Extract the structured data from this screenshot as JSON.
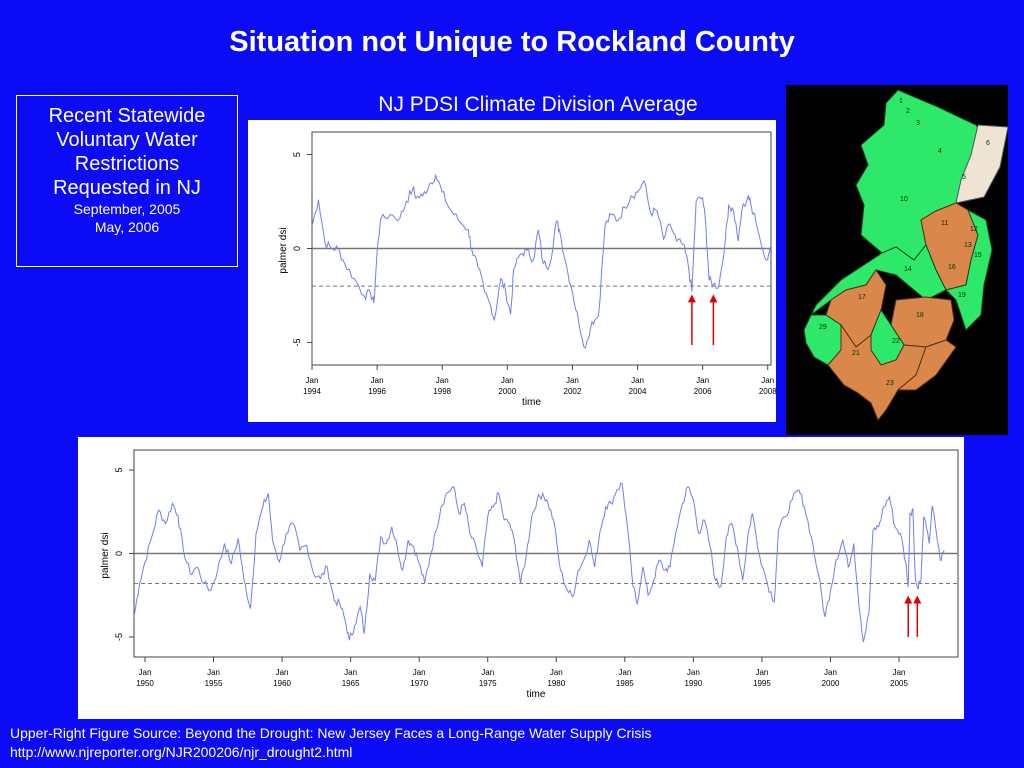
{
  "title": "Situation not Unique to Rockland County",
  "chart_title": "NJ PDSI Climate Division Average",
  "callout": {
    "line1": "Recent Statewide",
    "line2": "Voluntary Water",
    "line3": "Restrictions",
    "line4": "Requested in NJ",
    "date1": "September, 2005",
    "date2": "May, 2006"
  },
  "footer": {
    "line1": "Upper-Right Figure Source: Beyond the Drought: New Jersey Faces a Long-Range Water Supply Crisis",
    "line2": "http://www.njreporter.org/NJR200206/njr_drought2.html"
  },
  "colors": {
    "background": "#0b0bf5",
    "series": "#6f7ff0",
    "arrow": "#e00000",
    "map_green": "#2ee86a",
    "map_orange": "#d9874a",
    "map_beige": "#efe3d6"
  },
  "chart_data": [
    {
      "type": "line",
      "ylabel": "palmer dsi",
      "xlabel": "time",
      "ylim": [
        -6.2,
        6.2
      ],
      "yticks": [
        -5,
        0,
        5
      ],
      "reference_lines": [
        0,
        -2
      ],
      "xlim": [
        1994,
        2008.1
      ],
      "xticks": [
        {
          "x": 1994,
          "label": "Jan\n1994"
        },
        {
          "x": 1996,
          "label": "Jan\n1996"
        },
        {
          "x": 1998,
          "label": "Jan\n1998"
        },
        {
          "x": 2000,
          "label": "Jan\n2000"
        },
        {
          "x": 2002,
          "label": "Jan\n2002"
        },
        {
          "x": 2004,
          "label": "Jan\n2004"
        },
        {
          "x": 2006,
          "label": "Jan\n2006"
        },
        {
          "x": 2008,
          "label": "Jan\n2008"
        }
      ],
      "arrows_at": [
        2005.67,
        2006.33
      ],
      "series": [
        {
          "values": [
            [
              1994.0,
              1.2
            ],
            [
              1994.2,
              2.6
            ],
            [
              1994.4,
              0.3
            ],
            [
              1994.6,
              0.0
            ],
            [
              1994.8,
              0.0
            ],
            [
              1995.0,
              -0.8
            ],
            [
              1995.3,
              -1.6
            ],
            [
              1995.6,
              -2.5
            ],
            [
              1995.8,
              -2.4
            ],
            [
              1995.9,
              -2.9
            ],
            [
              1996.0,
              -0.2
            ],
            [
              1996.1,
              1.5
            ],
            [
              1996.4,
              1.8
            ],
            [
              1996.7,
              1.6
            ],
            [
              1996.9,
              2.5
            ],
            [
              1997.1,
              3.2
            ],
            [
              1997.2,
              2.7
            ],
            [
              1997.4,
              2.8
            ],
            [
              1997.6,
              3.4
            ],
            [
              1997.8,
              3.9
            ],
            [
              1998.0,
              3.0
            ],
            [
              1998.2,
              2.2
            ],
            [
              1998.5,
              1.5
            ],
            [
              1998.8,
              1.0
            ],
            [
              1998.9,
              0.0
            ],
            [
              1999.1,
              -1.0
            ],
            [
              1999.3,
              -2.3
            ],
            [
              1999.5,
              -3.1
            ],
            [
              1999.6,
              -3.8
            ],
            [
              1999.8,
              -1.6
            ],
            [
              1999.95,
              -2.3
            ],
            [
              2000.1,
              -3.5
            ],
            [
              2000.2,
              -1.1
            ],
            [
              2000.4,
              -0.3
            ],
            [
              2000.6,
              -0.1
            ],
            [
              2000.8,
              -0.6
            ],
            [
              2000.95,
              1.0
            ],
            [
              2001.1,
              -0.8
            ],
            [
              2001.3,
              -0.9
            ],
            [
              2001.5,
              1.4
            ],
            [
              2001.6,
              1.0
            ],
            [
              2001.8,
              -0.8
            ],
            [
              2002.0,
              -2.3
            ],
            [
              2002.2,
              -4.0
            ],
            [
              2002.4,
              -5.3
            ],
            [
              2002.6,
              -3.9
            ],
            [
              2002.8,
              -3.6
            ],
            [
              2003.0,
              1.2
            ],
            [
              2003.2,
              1.8
            ],
            [
              2003.4,
              1.5
            ],
            [
              2003.6,
              2.2
            ],
            [
              2003.8,
              2.8
            ],
            [
              2004.0,
              3.0
            ],
            [
              2004.2,
              3.6
            ],
            [
              2004.4,
              1.9
            ],
            [
              2004.6,
              2.0
            ],
            [
              2004.8,
              0.5
            ],
            [
              2005.0,
              1.3
            ],
            [
              2005.2,
              0.4
            ],
            [
              2005.4,
              0.2
            ],
            [
              2005.55,
              -0.8
            ],
            [
              2005.67,
              -2.3
            ],
            [
              2005.8,
              2.5
            ],
            [
              2006.0,
              2.7
            ],
            [
              2006.1,
              1.2
            ],
            [
              2006.2,
              -1.7
            ],
            [
              2006.33,
              -1.9
            ],
            [
              2006.5,
              -2.0
            ],
            [
              2006.7,
              0.5
            ],
            [
              2006.8,
              2.3
            ],
            [
              2006.95,
              2.0
            ],
            [
              2007.1,
              0.4
            ],
            [
              2007.2,
              2.0
            ],
            [
              2007.4,
              2.8
            ],
            [
              2007.5,
              2.2
            ],
            [
              2007.6,
              1.8
            ],
            [
              2007.8,
              0.2
            ],
            [
              2008.0,
              -0.6
            ],
            [
              2008.1,
              0.2
            ]
          ]
        }
      ]
    },
    {
      "type": "line",
      "ylabel": "palmer dsi",
      "xlabel": "time",
      "ylim": [
        -6.2,
        6.2
      ],
      "yticks": [
        -5,
        0,
        5
      ],
      "reference_lines": [
        0,
        -1.8
      ],
      "xlim": [
        1949.2,
        2009.3
      ],
      "xticks": [
        {
          "x": 1950,
          "label": "Jan\n1950"
        },
        {
          "x": 1955,
          "label": "Jan\n1955"
        },
        {
          "x": 1960,
          "label": "Jan\n1960"
        },
        {
          "x": 1965,
          "label": "Jan\n1965"
        },
        {
          "x": 1970,
          "label": "Jan\n1970"
        },
        {
          "x": 1975,
          "label": "Jan\n1975"
        },
        {
          "x": 1980,
          "label": "Jan\n1980"
        },
        {
          "x": 1985,
          "label": "Jan\n1985"
        },
        {
          "x": 1990,
          "label": "Jan\n1990"
        },
        {
          "x": 1995,
          "label": "Jan\n1995"
        },
        {
          "x": 2000,
          "label": "Jan\n2000"
        },
        {
          "x": 2005,
          "label": "Jan\n2005"
        }
      ],
      "arrows_at": [
        2005.67,
        2006.33
      ],
      "series": [
        {
          "values": [
            [
              1949.2,
              -3.8
            ],
            [
              1949.6,
              -1.8
            ],
            [
              1950.0,
              -0.5
            ],
            [
              1950.5,
              1.0
            ],
            [
              1951.0,
              2.6
            ],
            [
              1951.5,
              1.8
            ],
            [
              1952.0,
              3.0
            ],
            [
              1952.4,
              2.3
            ],
            [
              1952.8,
              0.2
            ],
            [
              1953.3,
              -1.2
            ],
            [
              1953.8,
              -0.8
            ],
            [
              1954.3,
              -1.8
            ],
            [
              1954.8,
              -2.2
            ],
            [
              1955.3,
              -1.0
            ],
            [
              1955.8,
              0.6
            ],
            [
              1956.3,
              -0.6
            ],
            [
              1956.8,
              0.9
            ],
            [
              1957.2,
              -1.5
            ],
            [
              1957.7,
              -3.3
            ],
            [
              1958.1,
              1.2
            ],
            [
              1958.6,
              2.8
            ],
            [
              1959.0,
              3.6
            ],
            [
              1959.3,
              0.8
            ],
            [
              1959.8,
              -0.5
            ],
            [
              1960.3,
              1.2
            ],
            [
              1960.8,
              1.8
            ],
            [
              1961.3,
              0.2
            ],
            [
              1961.8,
              0.5
            ],
            [
              1962.3,
              -1.2
            ],
            [
              1962.8,
              -1.5
            ],
            [
              1963.3,
              -0.8
            ],
            [
              1963.8,
              -2.8
            ],
            [
              1964.2,
              -3.0
            ],
            [
              1964.6,
              -4.0
            ],
            [
              1964.9,
              -5.2
            ],
            [
              1965.3,
              -4.3
            ],
            [
              1965.7,
              -3.2
            ],
            [
              1966.0,
              -4.8
            ],
            [
              1966.4,
              -1.2
            ],
            [
              1966.8,
              -1.6
            ],
            [
              1967.2,
              1.0
            ],
            [
              1967.6,
              0.6
            ],
            [
              1968.0,
              1.6
            ],
            [
              1968.4,
              0.4
            ],
            [
              1968.8,
              -1.0
            ],
            [
              1969.2,
              0.8
            ],
            [
              1969.6,
              0.4
            ],
            [
              1970.0,
              -0.6
            ],
            [
              1970.4,
              -1.8
            ],
            [
              1970.8,
              -0.2
            ],
            [
              1971.2,
              1.3
            ],
            [
              1971.6,
              2.8
            ],
            [
              1972.0,
              3.6
            ],
            [
              1972.5,
              4.0
            ],
            [
              1972.9,
              2.4
            ],
            [
              1973.3,
              3.0
            ],
            [
              1973.7,
              1.2
            ],
            [
              1974.2,
              0.2
            ],
            [
              1974.6,
              -0.8
            ],
            [
              1975.0,
              2.2
            ],
            [
              1975.4,
              2.8
            ],
            [
              1975.8,
              3.6
            ],
            [
              1976.2,
              2.0
            ],
            [
              1976.6,
              1.8
            ],
            [
              1977.0,
              0.5
            ],
            [
              1977.4,
              -1.8
            ],
            [
              1977.8,
              -0.2
            ],
            [
              1978.2,
              2.2
            ],
            [
              1978.6,
              3.2
            ],
            [
              1979.0,
              3.6
            ],
            [
              1979.4,
              3.0
            ],
            [
              1979.8,
              2.0
            ],
            [
              1980.3,
              -1.0
            ],
            [
              1980.8,
              -2.2
            ],
            [
              1981.2,
              -2.6
            ],
            [
              1981.6,
              -1.0
            ],
            [
              1982.0,
              -0.4
            ],
            [
              1982.4,
              0.8
            ],
            [
              1982.8,
              -0.8
            ],
            [
              1983.2,
              1.4
            ],
            [
              1983.6,
              2.8
            ],
            [
              1984.0,
              3.0
            ],
            [
              1984.4,
              3.8
            ],
            [
              1984.8,
              4.2
            ],
            [
              1985.2,
              1.5
            ],
            [
              1985.6,
              -2.0
            ],
            [
              1985.9,
              -3.0
            ],
            [
              1986.3,
              -0.8
            ],
            [
              1986.7,
              -2.5
            ],
            [
              1987.1,
              -1.6
            ],
            [
              1987.5,
              -0.4
            ],
            [
              1987.9,
              -1.0
            ],
            [
              1988.3,
              -0.8
            ],
            [
              1988.7,
              1.2
            ],
            [
              1989.2,
              3.0
            ],
            [
              1989.6,
              4.0
            ],
            [
              1990.0,
              3.2
            ],
            [
              1990.4,
              1.2
            ],
            [
              1990.8,
              2.0
            ],
            [
              1991.2,
              0.5
            ],
            [
              1991.6,
              -1.6
            ],
            [
              1992.0,
              -2.0
            ],
            [
              1992.4,
              1.0
            ],
            [
              1992.8,
              1.8
            ],
            [
              1993.2,
              0.4
            ],
            [
              1993.6,
              -1.6
            ],
            [
              1994.0,
              1.2
            ],
            [
              1994.3,
              2.4
            ],
            [
              1994.8,
              0.0
            ],
            [
              1995.4,
              -1.8
            ],
            [
              1995.9,
              -2.9
            ],
            [
              1996.2,
              1.4
            ],
            [
              1996.7,
              2.2
            ],
            [
              1997.2,
              3.2
            ],
            [
              1997.7,
              3.8
            ],
            [
              1998.1,
              2.8
            ],
            [
              1998.6,
              1.0
            ],
            [
              1999.1,
              -1.2
            ],
            [
              1999.6,
              -3.8
            ],
            [
              2000.0,
              -2.2
            ],
            [
              2000.4,
              -0.4
            ],
            [
              2000.9,
              0.8
            ],
            [
              2001.3,
              -0.8
            ],
            [
              2001.7,
              0.6
            ],
            [
              2002.0,
              -2.4
            ],
            [
              2002.4,
              -5.3
            ],
            [
              2002.8,
              -3.6
            ],
            [
              2003.1,
              1.4
            ],
            [
              2003.5,
              1.6
            ],
            [
              2003.9,
              2.8
            ],
            [
              2004.3,
              3.4
            ],
            [
              2004.7,
              1.6
            ],
            [
              2005.1,
              1.2
            ],
            [
              2005.5,
              -0.6
            ],
            [
              2005.67,
              -2.0
            ],
            [
              2005.8,
              2.4
            ],
            [
              2006.0,
              2.7
            ],
            [
              2006.2,
              -1.6
            ],
            [
              2006.33,
              -2.0
            ],
            [
              2006.6,
              -1.6
            ],
            [
              2006.8,
              2.2
            ],
            [
              2007.2,
              0.6
            ],
            [
              2007.4,
              2.8
            ],
            [
              2007.6,
              2.0
            ],
            [
              2008.0,
              -0.4
            ],
            [
              2008.3,
              0.2
            ]
          ]
        }
      ]
    }
  ],
  "map": {
    "divisions": [
      "1",
      "2",
      "3",
      "4",
      "5",
      "6",
      "10",
      "11",
      "12",
      "13",
      "14",
      "15",
      "16",
      "17",
      "18",
      "19",
      "21",
      "22",
      "23",
      "29"
    ]
  }
}
